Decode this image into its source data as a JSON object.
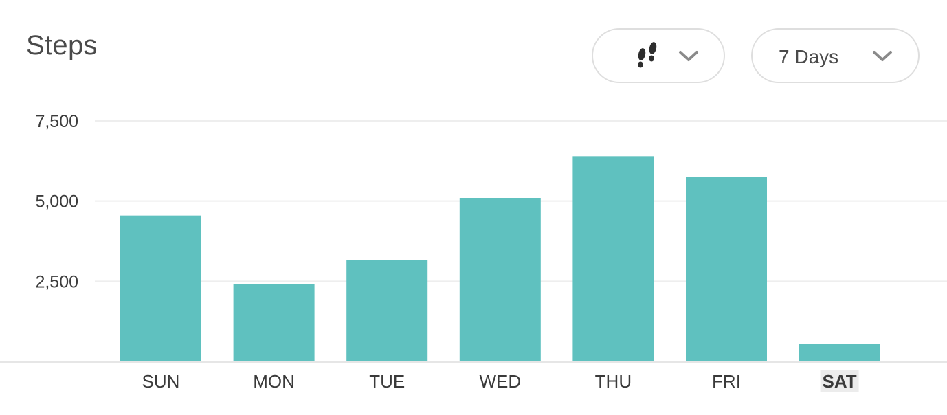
{
  "header": {
    "title": "Steps",
    "metric_selector": {
      "icon": "footprints-icon",
      "chevron": "chevron-down-icon"
    },
    "range_selector": {
      "label": "7 Days",
      "chevron": "chevron-down-icon"
    }
  },
  "colors": {
    "bar": "#5fc1bf",
    "grid": "#eeeeee",
    "baseline": "#e6e6e6",
    "selected_label_bg": "#ececec"
  },
  "chart_data": {
    "type": "bar",
    "title": "Steps",
    "categories": [
      "SUN",
      "MON",
      "TUE",
      "WED",
      "THU",
      "FRI",
      "SAT"
    ],
    "values": [
      4550,
      2400,
      3150,
      5100,
      6400,
      5750,
      550
    ],
    "yticks": [
      2500,
      5000,
      7500
    ],
    "ytick_labels": [
      "2,500",
      "5,000",
      "7,500"
    ],
    "ylim": [
      0,
      7500
    ],
    "grid": true,
    "selected_category": "SAT"
  }
}
